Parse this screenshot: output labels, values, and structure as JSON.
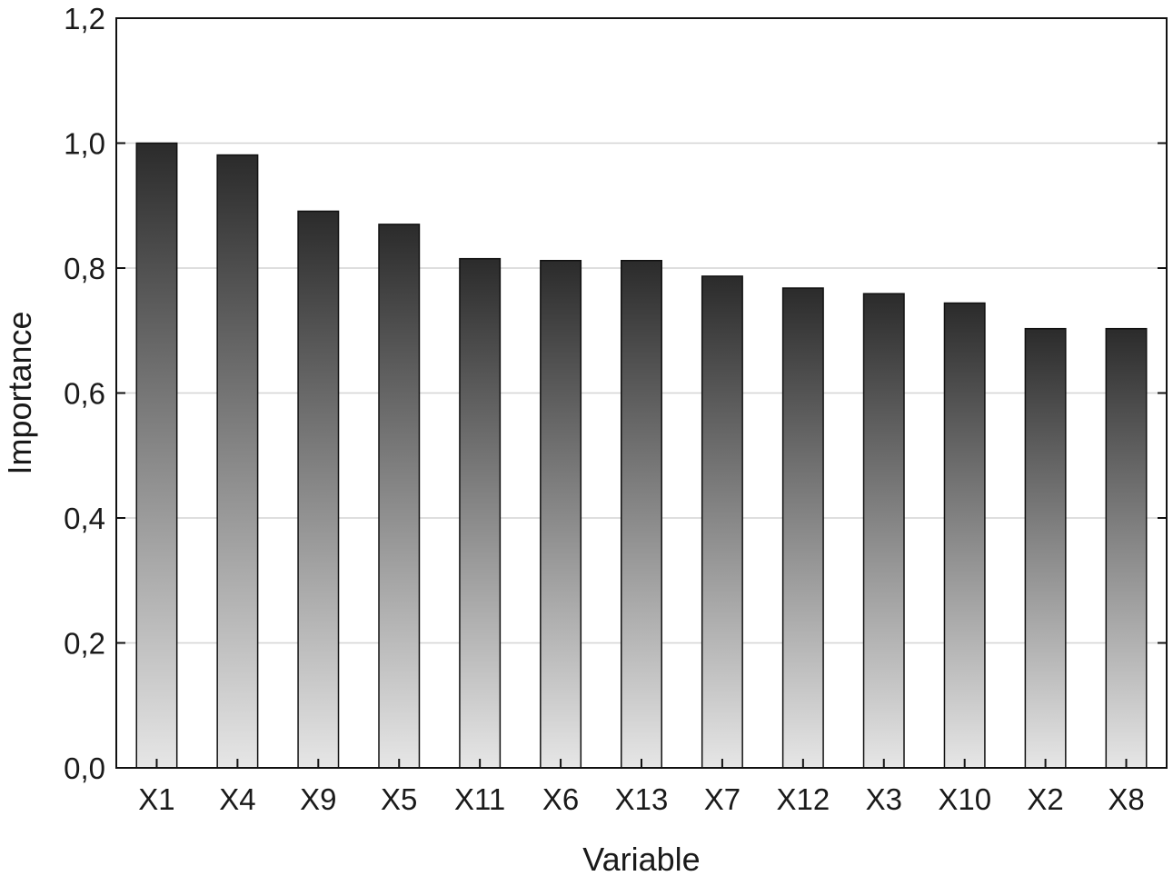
{
  "chart_data": {
    "type": "bar",
    "title": "",
    "xlabel": "Variable",
    "ylabel": "Importance",
    "categories": [
      "X1",
      "X4",
      "X9",
      "X5",
      "X11",
      "X6",
      "X13",
      "X7",
      "X12",
      "X3",
      "X10",
      "X2",
      "X8"
    ],
    "values": [
      1.0,
      0.981,
      0.891,
      0.87,
      0.815,
      0.812,
      0.812,
      0.787,
      0.768,
      0.759,
      0.744,
      0.703,
      0.703
    ],
    "ylim": [
      0,
      1.2
    ],
    "yticks": [
      "0,0",
      "0,2",
      "0,4",
      "0,6",
      "0,8",
      "1,0",
      "1,2"
    ],
    "grid": "horizontal",
    "legend": "none",
    "colors": {
      "bar_top": "#2b2b2b",
      "bar_bottom": "#e6e6e6",
      "bar_outline": "#111111",
      "grid": "#d4d4d4",
      "axis": "#111111"
    }
  }
}
